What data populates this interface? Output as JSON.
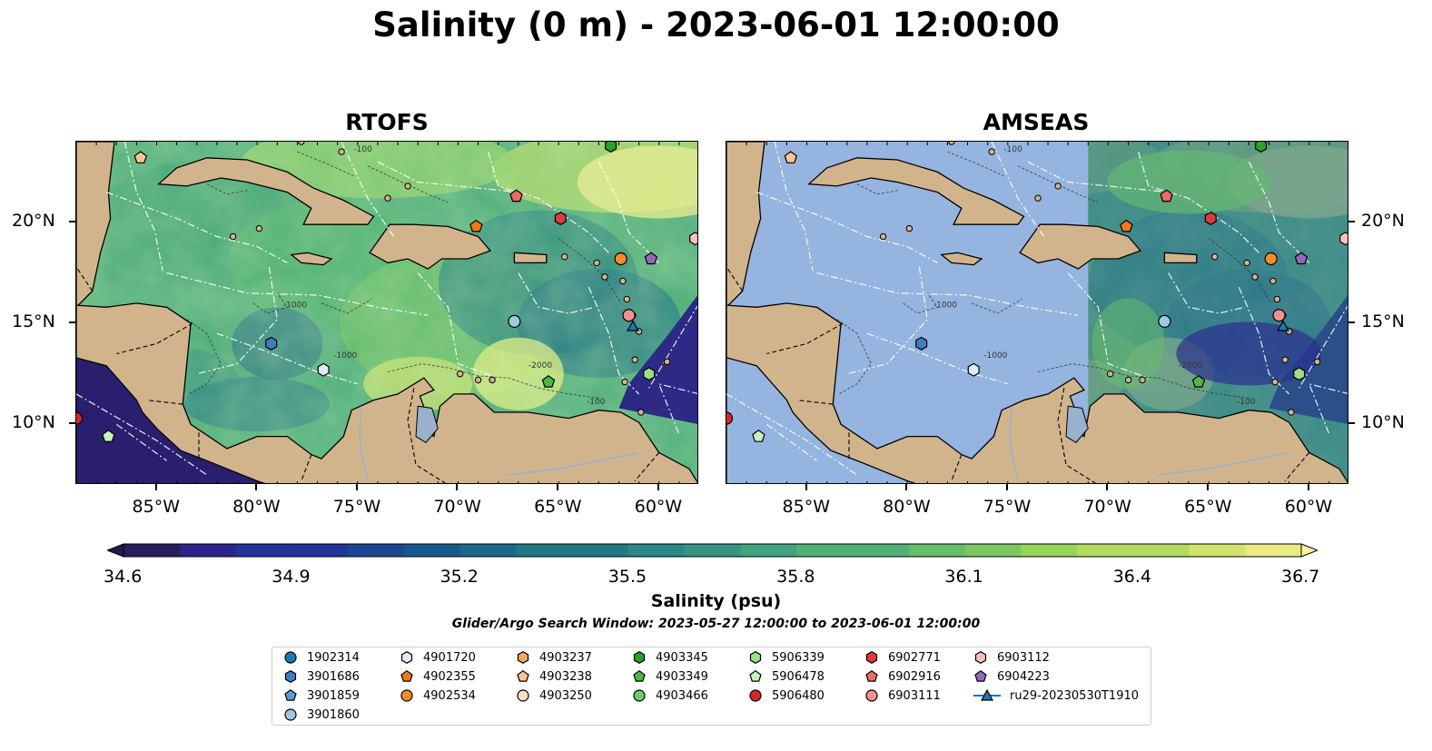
{
  "title": "Salinity (0 m) - 2023-06-01 12:00:00",
  "panels": [
    {
      "title": "RTOFS",
      "model_coverage": "full"
    },
    {
      "title": "AMSEAS",
      "model_coverage": "east_of_71W"
    }
  ],
  "map_extent": {
    "lon": [
      -89,
      -58
    ],
    "lat": [
      7,
      24
    ]
  },
  "lon_ticks": [
    "85°W",
    "80°W",
    "75°W",
    "70°W",
    "65°W",
    "60°W"
  ],
  "lat_ticks": [
    "20°N",
    "15°N",
    "10°N"
  ],
  "isobath_labels": [
    "-100",
    "-1000",
    "-2000"
  ],
  "colorbar": {
    "label": "Salinity (psu)",
    "ticks": [
      "34.6",
      "34.9",
      "35.2",
      "35.5",
      "35.8",
      "36.1",
      "36.4",
      "36.7"
    ],
    "min": 34.6,
    "max": 36.7,
    "extend": "both",
    "colormap": "haline"
  },
  "search_window": "Glider/Argo Search Window: 2023-05-27 12:00:00 to 2023-06-01 12:00:00",
  "colors": {
    "land": "#d2b48c",
    "nodata": "#95b4e0",
    "deep": "#2a1f6e",
    "river": "#9ab0cc"
  },
  "legend": {
    "items": [
      {
        "id": "1902314",
        "shape": "circle",
        "color": "#1f77b4"
      },
      {
        "id": "3901686",
        "shape": "hexagon",
        "color": "#3d7fc0"
      },
      {
        "id": "3901859",
        "shape": "pentagon",
        "color": "#5b9bd5"
      },
      {
        "id": "3901860",
        "shape": "circle",
        "color": "#9ecae1"
      },
      {
        "id": "4901720",
        "shape": "hexagon",
        "color": "#deebf7"
      },
      {
        "id": "4902355",
        "shape": "pentagon",
        "color": "#f07a18"
      },
      {
        "id": "4902534",
        "shape": "circle",
        "color": "#f58c2a"
      },
      {
        "id": "4903237",
        "shape": "hexagon",
        "color": "#f9a860"
      },
      {
        "id": "4903238",
        "shape": "pentagon",
        "color": "#fbc592"
      },
      {
        "id": "4903250",
        "shape": "circle",
        "color": "#fde0c5"
      },
      {
        "id": "4903345",
        "shape": "hexagon",
        "color": "#2ca02c"
      },
      {
        "id": "4903349",
        "shape": "pentagon",
        "color": "#4cb848"
      },
      {
        "id": "4903466",
        "shape": "circle",
        "color": "#6acd6a"
      },
      {
        "id": "5906339",
        "shape": "hexagon",
        "color": "#98df8a"
      },
      {
        "id": "5906478",
        "shape": "pentagon",
        "color": "#c7f3c0"
      },
      {
        "id": "5906480",
        "shape": "circle",
        "color": "#d62728"
      },
      {
        "id": "6902771",
        "shape": "hexagon",
        "color": "#e03a3c"
      },
      {
        "id": "6902916",
        "shape": "pentagon",
        "color": "#f06868"
      },
      {
        "id": "6903111",
        "shape": "circle",
        "color": "#f59090"
      },
      {
        "id": "6903112",
        "shape": "hexagon",
        "color": "#f8c0c0"
      },
      {
        "id": "6904223",
        "shape": "pentagon",
        "color": "#9467bd"
      },
      {
        "id": "ru29-20230530T1910",
        "shape": "triangle",
        "color": "#1f77b4"
      }
    ]
  },
  "markers": [
    {
      "id": "4903238",
      "lon": -85.8,
      "lat": 23.2
    },
    {
      "id": "6902916",
      "lon": -67.1,
      "lat": 21.3
    },
    {
      "id": "4902355",
      "lon": -69.1,
      "lat": 19.8
    },
    {
      "id": "6902771",
      "lon": -64.9,
      "lat": 20.2
    },
    {
      "id": "4902534",
      "lon": -61.9,
      "lat": 18.2
    },
    {
      "id": "6904223",
      "lon": -60.4,
      "lat": 18.2
    },
    {
      "id": "6903112",
      "lon": -58.2,
      "lat": 19.2
    },
    {
      "id": "3901860",
      "lon": -67.2,
      "lat": 15.1
    },
    {
      "id": "6903111",
      "lon": -61.5,
      "lat": 15.4
    },
    {
      "id": "ru29-20230530T1910",
      "lon": -61.3,
      "lat": 14.8
    },
    {
      "id": "3901686",
      "lon": -79.3,
      "lat": 14.0
    },
    {
      "id": "4901720",
      "lon": -76.7,
      "lat": 12.7
    },
    {
      "id": "4903349",
      "lon": -65.5,
      "lat": 12.1
    },
    {
      "id": "5906339",
      "lon": -60.5,
      "lat": 12.5
    },
    {
      "id": "5906478",
      "lon": -87.4,
      "lat": 9.4
    },
    {
      "id": "5906480",
      "lon": -89.0,
      "lat": 10.3
    },
    {
      "id": "4903345",
      "lon": -62.4,
      "lat": 23.8
    }
  ]
}
